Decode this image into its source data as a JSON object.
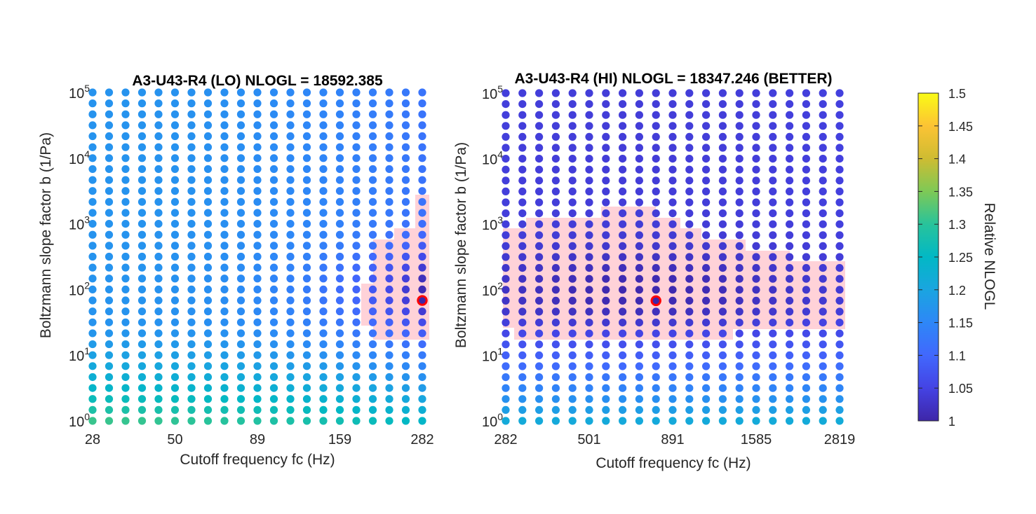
{
  "chart_data": [
    {
      "type": "scatter",
      "title": "A3-U43-R4 (LO) NLOGL = 18592.385",
      "xlabel": "Cutoff frequency fc (Hz)",
      "ylabel": "Boltzmann slope factor b (1/Pa)",
      "x_scale": "log",
      "y_scale": "log",
      "xlim": [
        28,
        282
      ],
      "ylim": [
        1,
        100000
      ],
      "xticks": [
        "28",
        "50",
        "89",
        "159",
        "282"
      ],
      "yticks": [
        "10^0",
        "10^1",
        "10^2",
        "10^3",
        "10^4",
        "10^5"
      ],
      "grid_points": {
        "x_count": 21,
        "y_count": 31
      },
      "best_fit": {
        "fc": 282,
        "b": 70,
        "relative_nlogl": 1.0
      },
      "value_model": {
        "description": "approximate relative NLOGL surface read from marker colors",
        "min_relative_nlogl": 1.0,
        "colormap": "parula"
      },
      "highlight_region": "confidence region near best fit (pink)"
    },
    {
      "type": "scatter",
      "title": "A3-U43-R4 (HI) NLOGL = 18347.246 (BETTER)",
      "xlabel": "Cutoff frequency fc (Hz)",
      "ylabel": "Boltzmann slope factor b (1/Pa)",
      "x_scale": "log",
      "y_scale": "log",
      "xlim": [
        282,
        2819
      ],
      "ylim": [
        1,
        100000
      ],
      "xticks": [
        "282",
        "501",
        "891",
        "1585",
        "2819"
      ],
      "yticks": [
        "10^0",
        "10^1",
        "10^2",
        "10^3",
        "10^4",
        "10^5"
      ],
      "grid_points": {
        "x_count": 21,
        "y_count": 31
      },
      "best_fit": {
        "fc": 794,
        "b": 70,
        "relative_nlogl": 1.0
      },
      "value_model": {
        "description": "approximate relative NLOGL surface read from marker colors",
        "min_relative_nlogl": 1.0,
        "colormap": "parula"
      },
      "highlight_region": "confidence region near best fit (pink)"
    }
  ],
  "colorbar": {
    "label": "Relative NLOGL",
    "min": 1.0,
    "max": 1.5,
    "ticks": [
      "1",
      "1.05",
      "1.1",
      "1.15",
      "1.2",
      "1.25",
      "1.3",
      "1.35",
      "1.4",
      "1.45",
      "1.5"
    ]
  },
  "colors": {
    "best_marker": "#ff0000",
    "region_fill": "#ffd0d6"
  }
}
